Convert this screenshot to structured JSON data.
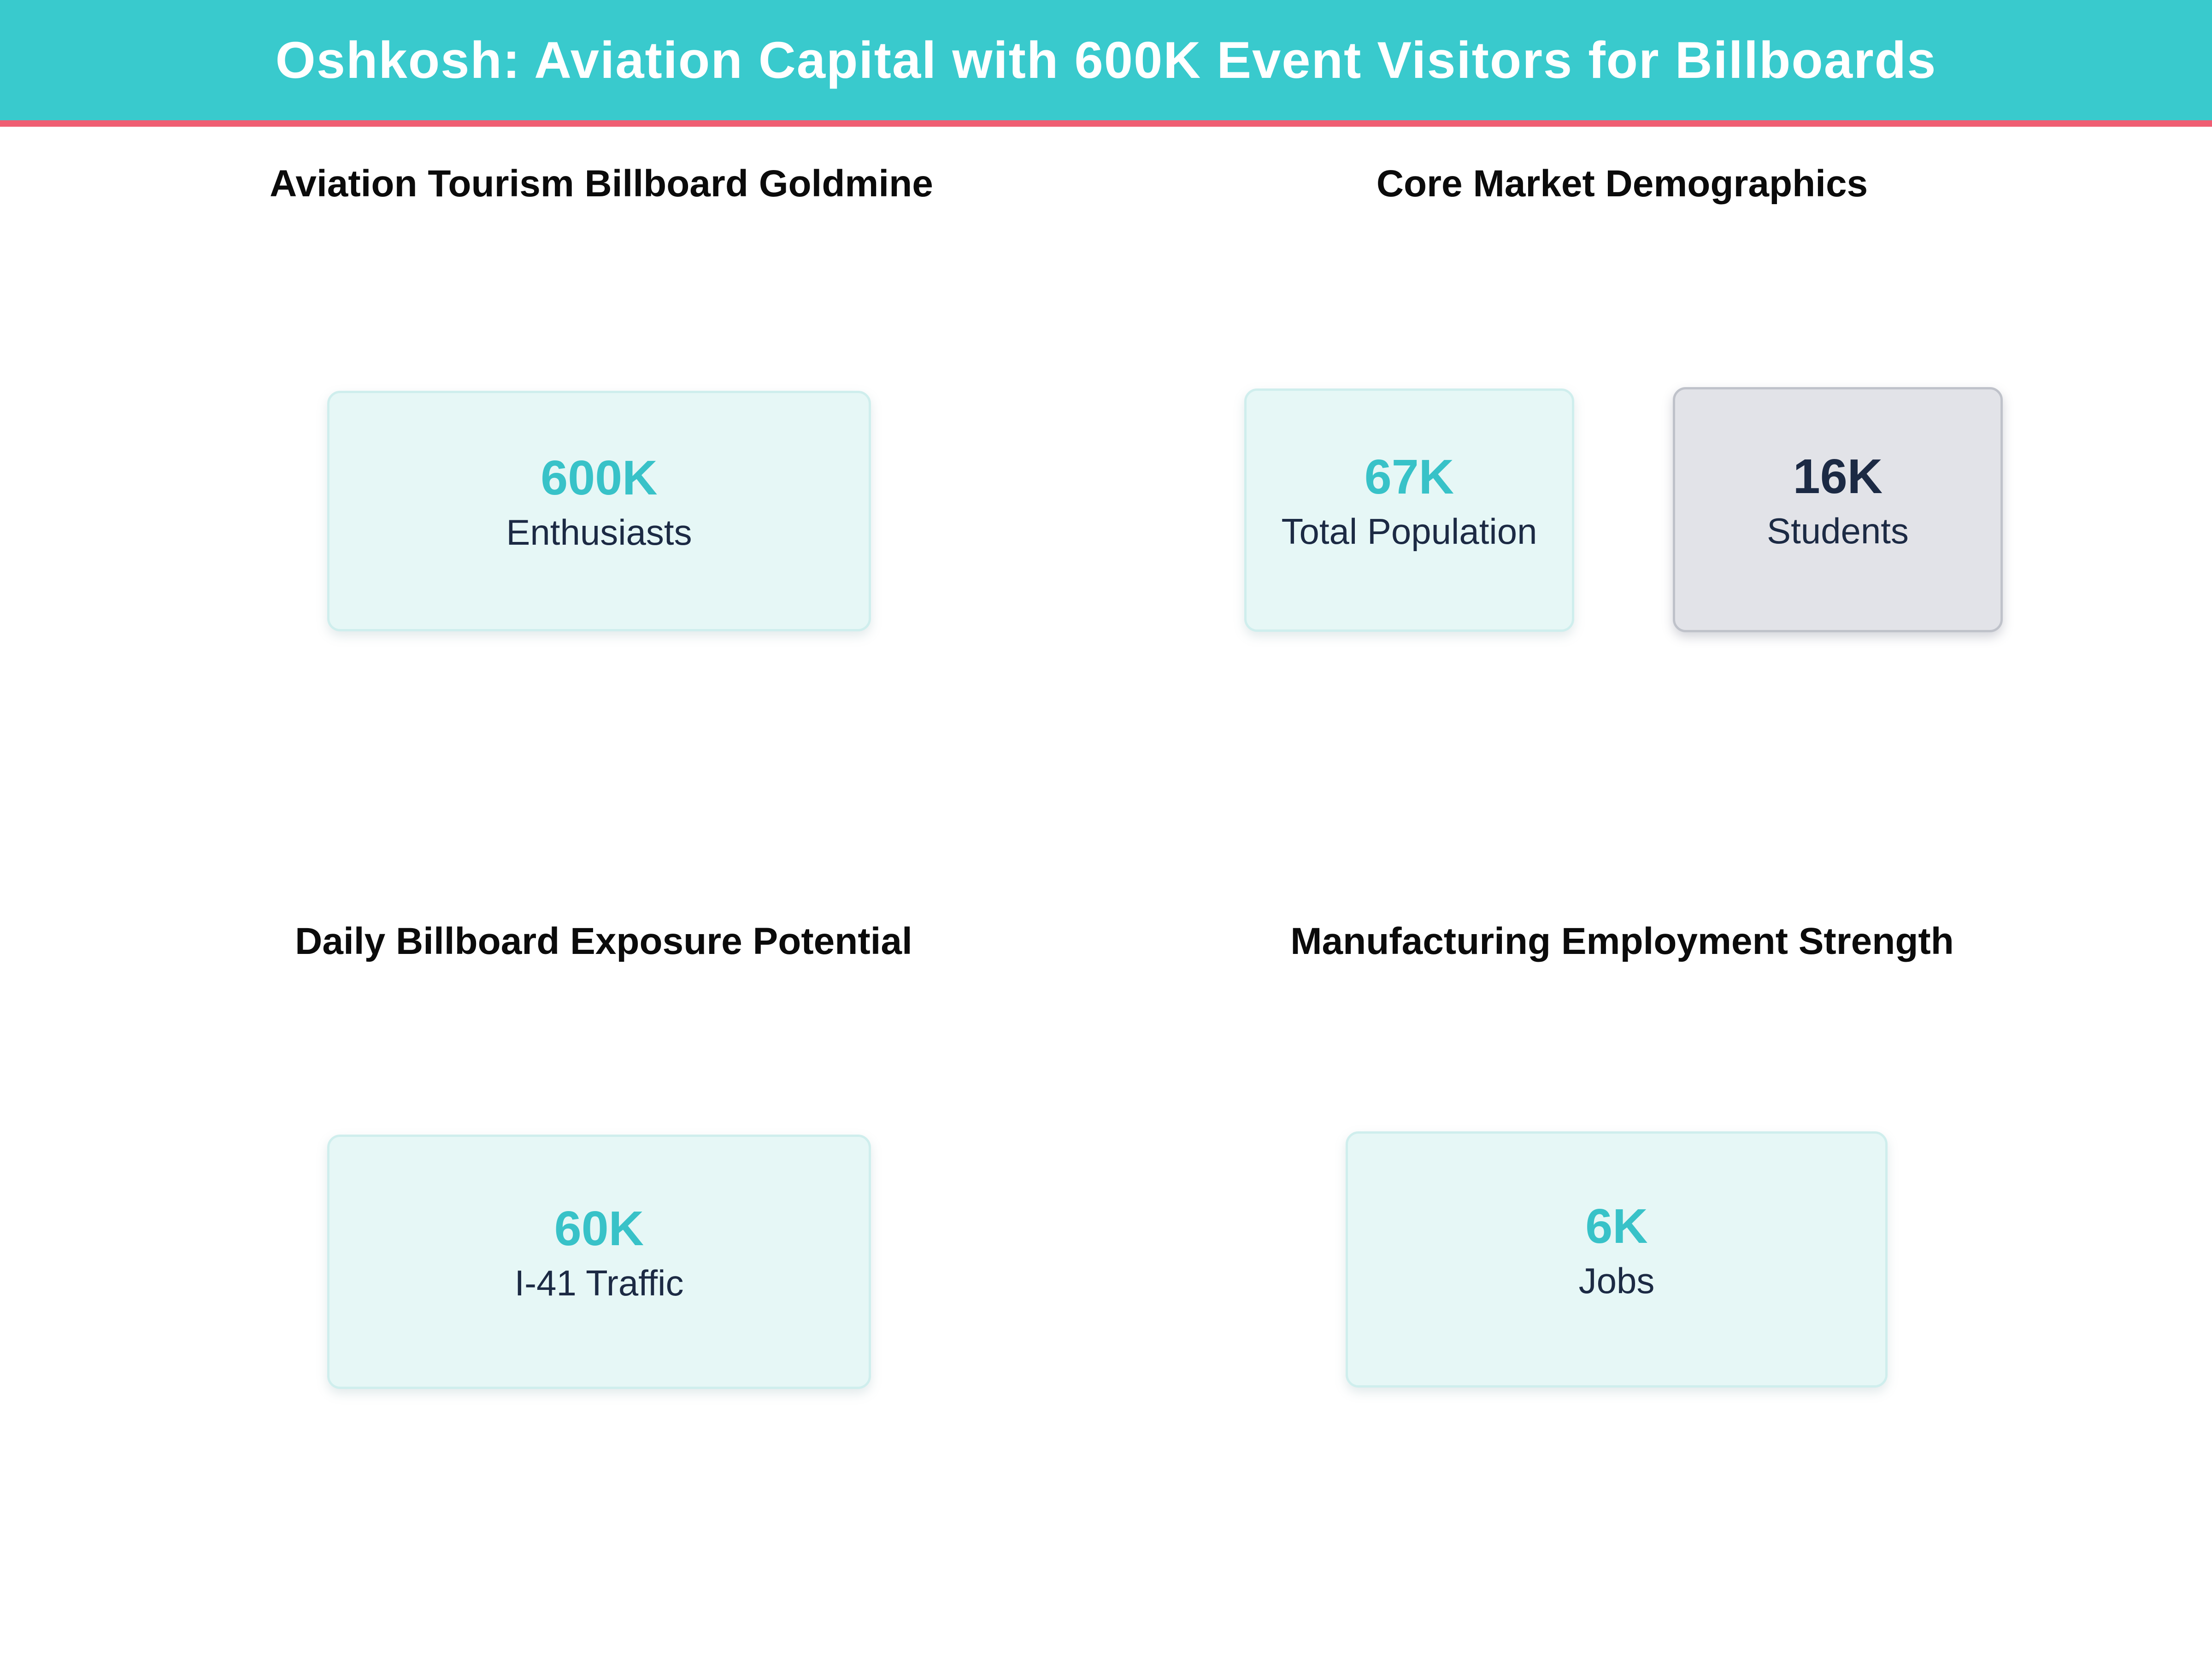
{
  "header": {
    "title": "Oshkosh: Aviation Capital with 600K Event Visitors for Billboards"
  },
  "colors": {
    "header_bg": "#39cacd",
    "header_text": "#ffffff",
    "divider_pink": "#ef5e73",
    "value_teal": "#38c2c8",
    "text_navy": "#1c2a44",
    "section_title": "#0b0b0b",
    "card_mint_bg": "#e6f7f6",
    "card_mint_border": "#cfeeed",
    "card_gray_bg": "#e2e3e8",
    "card_gray_border": "#bfc2ca"
  },
  "sections": [
    {
      "title": "Aviation Tourism Billboard Goldmine",
      "cards": [
        {
          "value": "600K",
          "label": "Enthusiasts",
          "variant": "teal"
        }
      ]
    },
    {
      "title": "Core Market Demographics",
      "cards": [
        {
          "value": "67K",
          "label": "Total Population",
          "variant": "teal"
        },
        {
          "value": "16K",
          "label": "Students",
          "variant": "gray"
        }
      ]
    },
    {
      "title": "Daily Billboard Exposure Potential",
      "cards": [
        {
          "value": "60K",
          "label": "I-41 Traffic",
          "variant": "teal"
        }
      ]
    },
    {
      "title": "Manufacturing Employment Strength",
      "cards": [
        {
          "value": "6K",
          "label": "Jobs",
          "variant": "teal"
        }
      ]
    }
  ],
  "chart_data": [
    {
      "type": "table",
      "title": "Aviation Tourism Billboard Goldmine",
      "categories": [
        "Enthusiasts"
      ],
      "values": [
        600000
      ],
      "value_labels": [
        "600K"
      ]
    },
    {
      "type": "table",
      "title": "Core Market Demographics",
      "categories": [
        "Total Population",
        "Students"
      ],
      "values": [
        67000,
        16000
      ],
      "value_labels": [
        "67K",
        "16K"
      ]
    },
    {
      "type": "table",
      "title": "Daily Billboard Exposure Potential",
      "categories": [
        "I-41 Traffic"
      ],
      "values": [
        60000
      ],
      "value_labels": [
        "60K"
      ]
    },
    {
      "type": "table",
      "title": "Manufacturing Employment Strength",
      "categories": [
        "Jobs"
      ],
      "values": [
        6000
      ],
      "value_labels": [
        "6K"
      ]
    }
  ]
}
